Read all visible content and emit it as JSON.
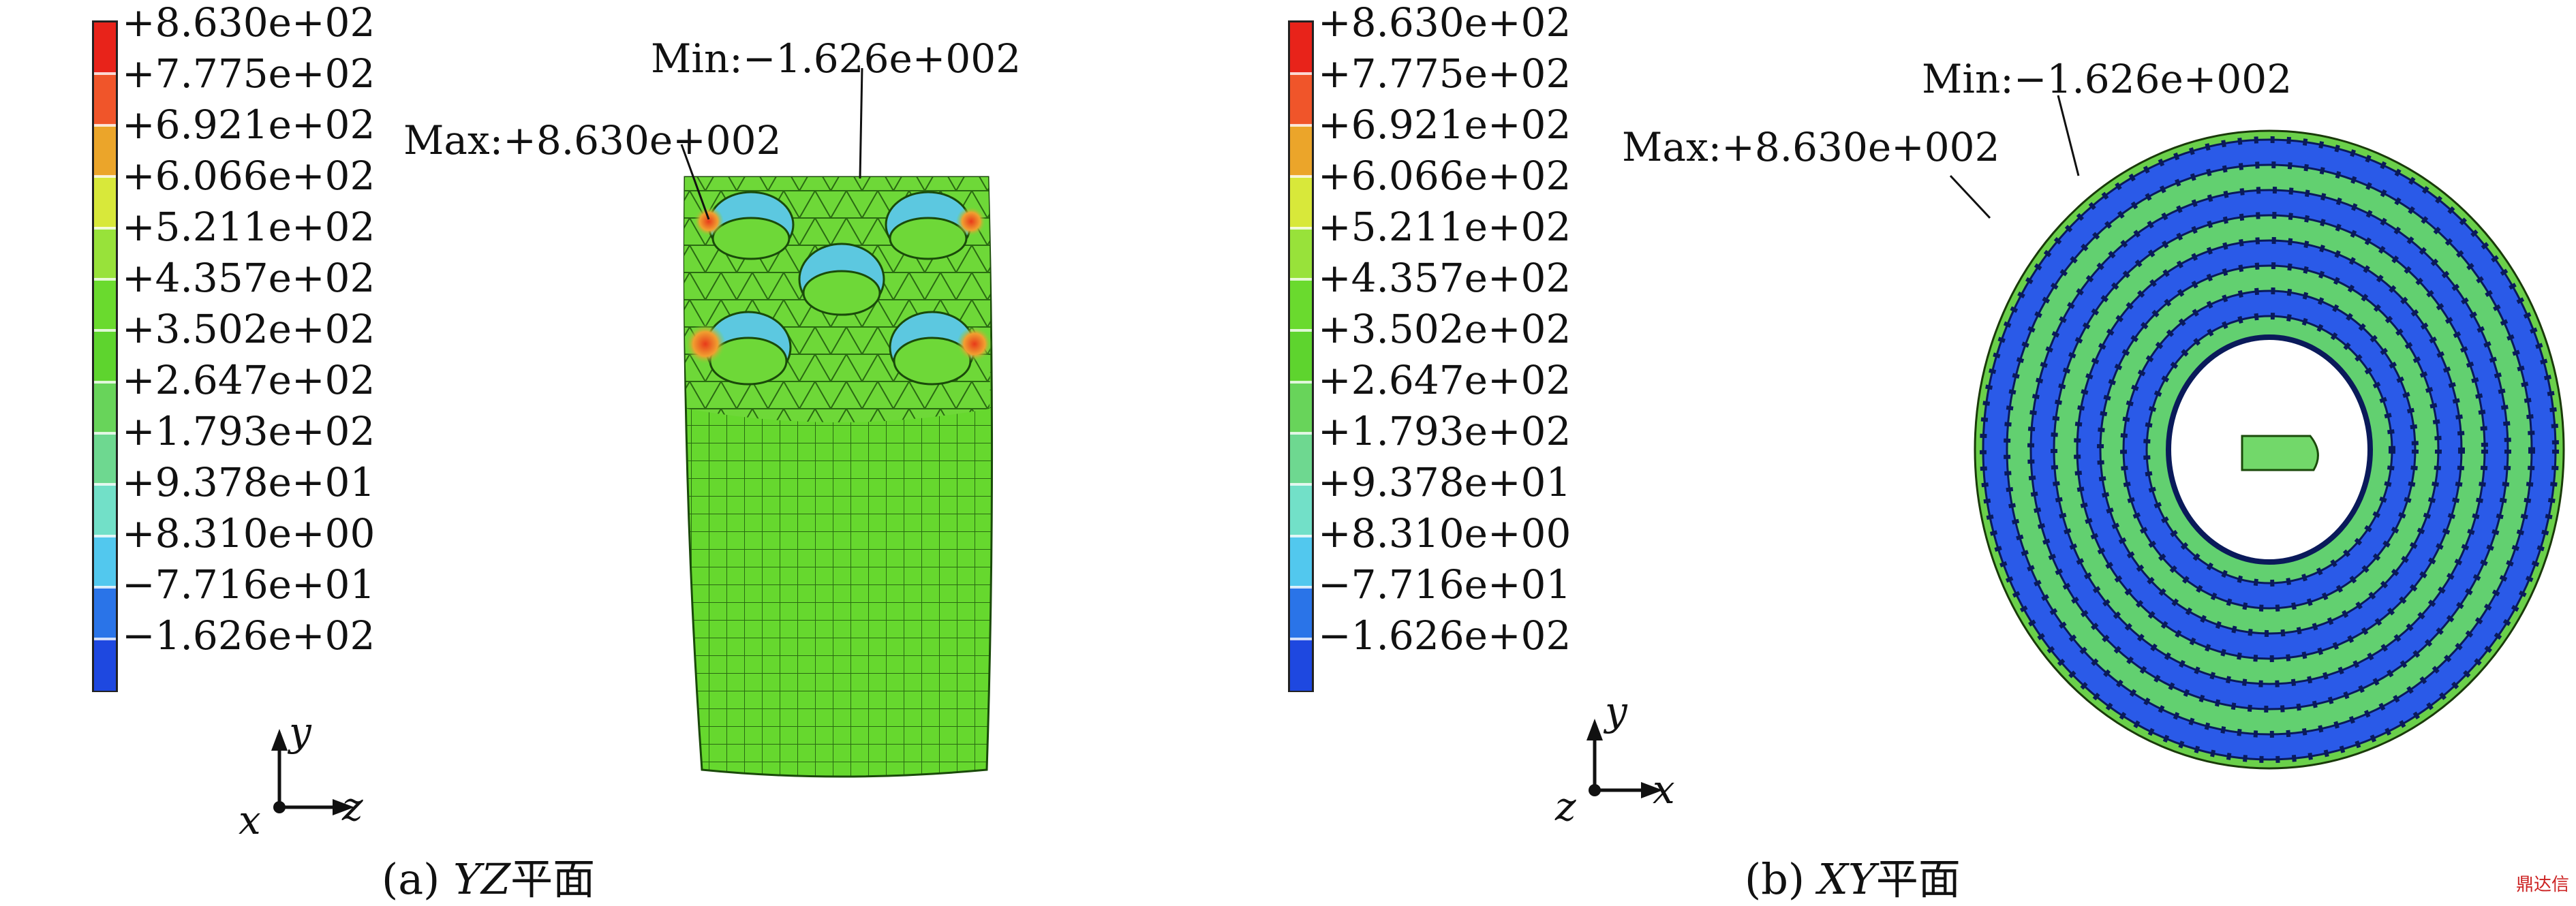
{
  "legend": {
    "labels": [
      "+8.630e+02",
      "+7.775e+02",
      "+6.921e+02",
      "+6.066e+02",
      "+5.211e+02",
      "+4.357e+02",
      "+3.502e+02",
      "+2.647e+02",
      "+1.793e+02",
      "+9.378e+01",
      "+8.310e+00",
      "−7.716e+01",
      "−1.626e+02"
    ],
    "colors": [
      "#e8231a",
      "#f0552a",
      "#eba52a",
      "#d8e83a",
      "#98e23a",
      "#6ada2e",
      "#5ed42e",
      "#68d45a",
      "#6ed890",
      "#72e0c8",
      "#52c8ee",
      "#2a74e8",
      "#1e48e0"
    ]
  },
  "panel_a": {
    "min_annotation": "Min:−1.626e+002",
    "max_annotation": "Max:+8.630e+002",
    "axis_up": "y",
    "axis_right": "z",
    "axis_out": "x",
    "caption_prefix": "(a) ",
    "caption_italic": "YZ",
    "caption_suffix": "平面"
  },
  "panel_b": {
    "min_annotation": "Min:−1.626e+002",
    "max_annotation": "Max:+8.630e+002",
    "axis_up": "y",
    "axis_right": "x",
    "axis_out": "z",
    "caption_prefix": "(b) ",
    "caption_italic": "XY",
    "caption_suffix": "平面"
  },
  "watermark": "鼎达信"
}
